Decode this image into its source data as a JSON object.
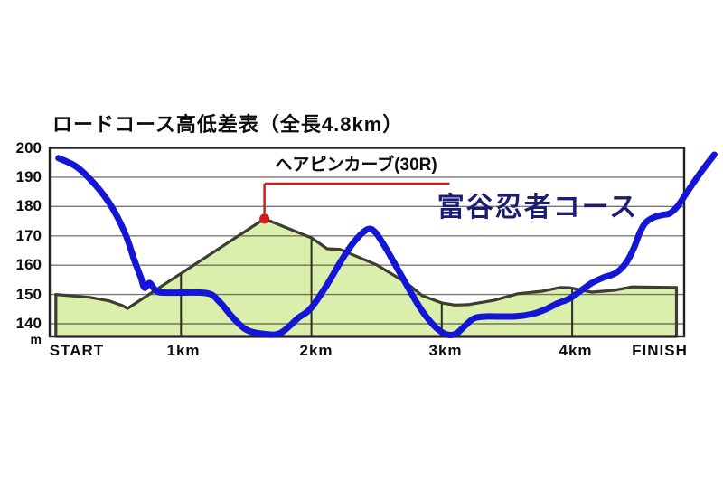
{
  "title": "ロードコース高低差表（全長4.8km）",
  "labels": {
    "hairpin": "ヘアピンカーブ(30R)",
    "course": "富谷忍者コース",
    "unit": "m"
  },
  "colors": {
    "background": "#ffffff",
    "profile_fill": "#daefac",
    "profile_stroke": "#3d3d33",
    "grid": "#4d4d45",
    "border": "#222222",
    "course_line": "#1515d6",
    "annotation_red": "#cf1d1d",
    "course_text": "#1c1c72",
    "title_text": "#0d0d0d"
  },
  "chart_data": {
    "type": "area",
    "title": "ロードコース高低差表（全長4.8km）",
    "xlabel": "",
    "ylabel": "m",
    "ylim": [
      135.7,
      200
    ],
    "xlim_km": [
      0,
      4.86
    ],
    "grid": "horizontal",
    "y_ticks": [
      200,
      190,
      180,
      170,
      160,
      150,
      140
    ],
    "x_ticks": [
      {
        "label": "START",
        "km": 0.2
      },
      {
        "label": "1km",
        "km": 1.02
      },
      {
        "label": "2km",
        "km": 2.04
      },
      {
        "label": "3km",
        "km": 3.03
      },
      {
        "label": "4km",
        "km": 4.03
      },
      {
        "label": "FINISH",
        "km": 4.67
      }
    ],
    "km_markers": [
      1,
      2,
      3,
      4
    ],
    "series": [
      {
        "name": "ロードコース高低差 (road course elevation profile)",
        "type": "area",
        "points_km_m": [
          [
            0.04,
            150
          ],
          [
            0.3,
            149
          ],
          [
            0.45,
            147.8
          ],
          [
            0.55,
            146.2
          ],
          [
            0.59,
            145.2
          ],
          [
            1.64,
            175.8
          ],
          [
            2.0,
            169.3
          ],
          [
            2.12,
            165.6
          ],
          [
            2.22,
            165.4
          ],
          [
            2.5,
            160.1
          ],
          [
            2.73,
            153.9
          ],
          [
            2.85,
            149.6
          ],
          [
            3.0,
            147.1
          ],
          [
            3.1,
            146.4
          ],
          [
            3.2,
            146.5
          ],
          [
            3.4,
            148.0
          ],
          [
            3.58,
            150.2
          ],
          [
            3.77,
            151.1
          ],
          [
            3.91,
            152.4
          ],
          [
            3.98,
            152.3
          ],
          [
            4.15,
            150.8
          ],
          [
            4.32,
            151.4
          ],
          [
            4.46,
            152.6
          ],
          [
            4.8,
            152.4
          ]
        ]
      },
      {
        "name": "富谷忍者コース",
        "type": "line",
        "points_km_m": [
          [
            0.06,
            196.5
          ],
          [
            0.2,
            193.5
          ],
          [
            0.34,
            187.5
          ],
          [
            0.46,
            180.5
          ],
          [
            0.57,
            171.0
          ],
          [
            0.64,
            162.0
          ],
          [
            0.69,
            156.0
          ],
          [
            0.72,
            152.3
          ],
          [
            0.76,
            153.9
          ],
          [
            0.81,
            151.2
          ],
          [
            0.89,
            150.6
          ],
          [
            1.19,
            150.5
          ],
          [
            1.29,
            147.7
          ],
          [
            1.4,
            142.0
          ],
          [
            1.5,
            138.0
          ],
          [
            1.62,
            136.6
          ],
          [
            1.76,
            136.8
          ],
          [
            1.9,
            142.0
          ],
          [
            1.99,
            145.0
          ],
          [
            2.11,
            152.6
          ],
          [
            2.23,
            161.6
          ],
          [
            2.33,
            168.1
          ],
          [
            2.43,
            172.2
          ],
          [
            2.49,
            171.2
          ],
          [
            2.56,
            166.6
          ],
          [
            2.64,
            160.4
          ],
          [
            2.73,
            153.3
          ],
          [
            2.81,
            147.1
          ],
          [
            2.88,
            142.5
          ],
          [
            2.96,
            138.5
          ],
          [
            3.04,
            136.3
          ],
          [
            3.11,
            136.6
          ],
          [
            3.18,
            139.4
          ],
          [
            3.25,
            141.9
          ],
          [
            3.35,
            142.5
          ],
          [
            3.56,
            142.5
          ],
          [
            3.7,
            143.4
          ],
          [
            3.8,
            145.0
          ],
          [
            3.89,
            147.0
          ],
          [
            3.98,
            148.6
          ],
          [
            4.07,
            151.4
          ],
          [
            4.15,
            153.9
          ],
          [
            4.24,
            155.8
          ],
          [
            4.32,
            157.0
          ],
          [
            4.38,
            159.0
          ],
          [
            4.43,
            162.0
          ],
          [
            4.48,
            166.6
          ],
          [
            4.52,
            171.2
          ],
          [
            4.56,
            174.3
          ],
          [
            4.62,
            176.2
          ],
          [
            4.69,
            177.1
          ],
          [
            4.75,
            177.7
          ],
          [
            4.81,
            180.2
          ],
          [
            4.88,
            184.8
          ],
          [
            4.95,
            189.4
          ],
          [
            5.02,
            193.7
          ],
          [
            5.09,
            197.7
          ]
        ]
      }
    ],
    "annotation": {
      "label": "ヘアピンカーブ(30R)",
      "dot_km": 1.64,
      "dot_m": 175.8,
      "elbow_m": 187.8,
      "end_km": 3.06
    }
  }
}
